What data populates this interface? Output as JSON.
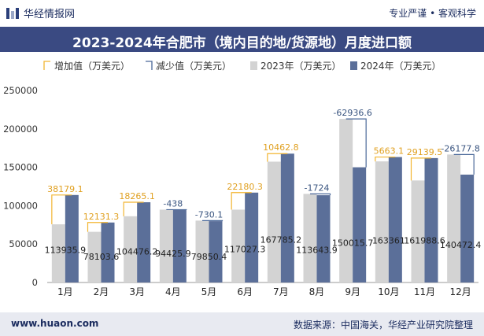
{
  "header": {
    "brand_name": "华经情报网",
    "tagline": "专业严谨 • 客观科学"
  },
  "title": "2023-2024年合肥市（境内目的地/货源地）月度进口额",
  "legend": [
    "增加值（万美元）",
    "减少值（万美元）",
    "2023年（万美元）",
    "2024年（万美元）"
  ],
  "footer": {
    "site": "www.huaon.com",
    "source": "数据来源：中国海关，华经产业研究院整理"
  },
  "colors": {
    "y2023": "#d3d3d3",
    "y2024": "#5b6f99",
    "increase": "#f2b530",
    "decrease": "#4a6899",
    "titlebar": "#3a4a82"
  },
  "chart_data": {
    "type": "bar",
    "title": "2023-2024年合肥市（境内目的地/货源地）月度进口额",
    "categories": [
      "1月",
      "2月",
      "3月",
      "4月",
      "5月",
      "6月",
      "7月",
      "8月",
      "9月",
      "10月",
      "11月",
      "12月"
    ],
    "ylim": [
      0,
      250000
    ],
    "yticks": [
      0,
      50000,
      100000,
      150000,
      200000,
      250000
    ],
    "series": [
      {
        "name": "2023年（万美元）",
        "values": [
          75757,
          65972,
          86211,
          94864,
          80581,
          94847,
          157322,
          115368,
          212952,
          157698,
          132849,
          166650
        ]
      },
      {
        "name": "2024年（万美元）",
        "values": [
          113935.9,
          78103.6,
          104476.2,
          94425.9,
          79850.4,
          117027.3,
          167785.2,
          113643.9,
          150015.7,
          163361,
          161988.6,
          140472.4
        ]
      }
    ],
    "change_labels": [
      "38179.1",
      "12131.3",
      "18265.1",
      "-438",
      "-730.1",
      "22180.3",
      "10462.8",
      "-1724",
      "-62936.6",
      "5663.1",
      "29139.5",
      "-26177.8"
    ],
    "value_labels": [
      "113935.9",
      "78103.6",
      "104476.2",
      "94425.9",
      "79850.4",
      "117027.3",
      "167785.2",
      "113643.9",
      "150015.7",
      "163361",
      "161988.6",
      "140472.4"
    ],
    "grid": false,
    "legend_position": "top"
  }
}
